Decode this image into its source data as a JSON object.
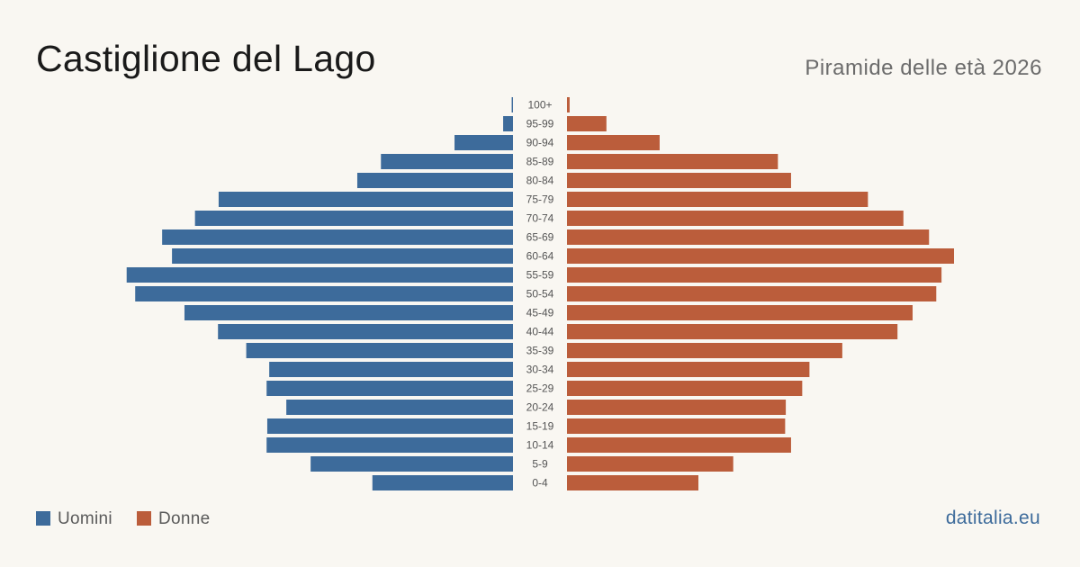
{
  "theme": {
    "background": "#f9f7f2",
    "title_color": "#1a1a1a",
    "muted_color": "#6b6b6b",
    "brand_color": "#3d6b9b"
  },
  "footer": {
    "brand": "datitalia.eu"
  },
  "chart_data": {
    "type": "bar",
    "title": "Castiglione del Lago",
    "subtitle": "Piramide delle età 2026",
    "categories": [
      "100+",
      "95-99",
      "90-94",
      "85-89",
      "80-84",
      "75-79",
      "70-74",
      "65-69",
      "60-64",
      "55-59",
      "50-54",
      "45-49",
      "40-44",
      "35-39",
      "30-34",
      "25-29",
      "20-24",
      "15-19",
      "10-14",
      "5-9",
      "0-4"
    ],
    "series": [
      {
        "name": "Uomini",
        "color": "#3d6b9b",
        "values": [
          2,
          15,
          89,
          201,
          237,
          448,
          484,
          534,
          519,
          588,
          575,
          500,
          449,
          406,
          371,
          375,
          345,
          374,
          375,
          308,
          214
        ]
      },
      {
        "name": "Donne",
        "color": "#bb5d3b",
        "values": [
          4,
          60,
          141,
          321,
          341,
          458,
          512,
          551,
          589,
          570,
          562,
          526,
          503,
          419,
          369,
          358,
          333,
          332,
          341,
          253,
          200
        ]
      }
    ],
    "grid": false,
    "legend_position": "bottom-left"
  }
}
